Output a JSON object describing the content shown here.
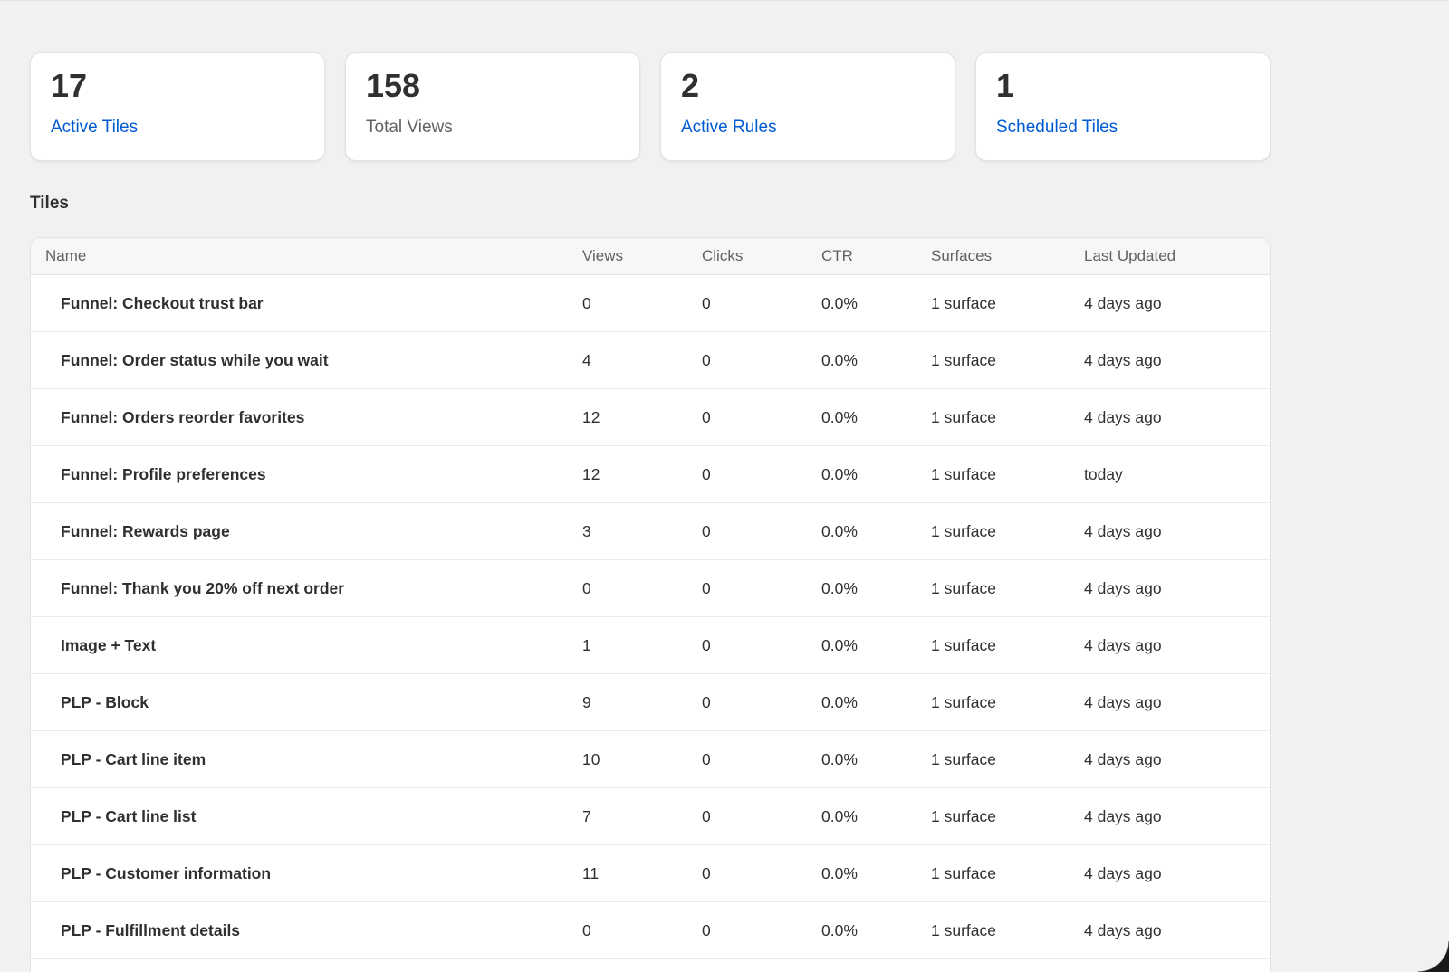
{
  "stats": [
    {
      "value": "17",
      "label": "Active Tiles",
      "link": true
    },
    {
      "value": "158",
      "label": "Total Views",
      "link": false
    },
    {
      "value": "2",
      "label": "Active Rules",
      "link": true
    },
    {
      "value": "1",
      "label": "Scheduled Tiles",
      "link": true
    }
  ],
  "section_title": "Tiles",
  "table": {
    "columns": [
      "Name",
      "Views",
      "Clicks",
      "CTR",
      "Surfaces",
      "Last Updated"
    ],
    "rows": [
      {
        "name": "Funnel: Checkout trust bar",
        "views": "0",
        "clicks": "0",
        "ctr": "0.0%",
        "surfaces": "1 surface",
        "updated": "4 days ago"
      },
      {
        "name": "Funnel: Order status while you wait",
        "views": "4",
        "clicks": "0",
        "ctr": "0.0%",
        "surfaces": "1 surface",
        "updated": "4 days ago"
      },
      {
        "name": "Funnel: Orders reorder favorites",
        "views": "12",
        "clicks": "0",
        "ctr": "0.0%",
        "surfaces": "1 surface",
        "updated": "4 days ago"
      },
      {
        "name": "Funnel: Profile preferences",
        "views": "12",
        "clicks": "0",
        "ctr": "0.0%",
        "surfaces": "1 surface",
        "updated": "today"
      },
      {
        "name": "Funnel: Rewards page",
        "views": "3",
        "clicks": "0",
        "ctr": "0.0%",
        "surfaces": "1 surface",
        "updated": "4 days ago"
      },
      {
        "name": "Funnel: Thank you 20% off next order",
        "views": "0",
        "clicks": "0",
        "ctr": "0.0%",
        "surfaces": "1 surface",
        "updated": "4 days ago"
      },
      {
        "name": "Image + Text",
        "views": "1",
        "clicks": "0",
        "ctr": "0.0%",
        "surfaces": "1 surface",
        "updated": "4 days ago"
      },
      {
        "name": "PLP - Block",
        "views": "9",
        "clicks": "0",
        "ctr": "0.0%",
        "surfaces": "1 surface",
        "updated": "4 days ago"
      },
      {
        "name": "PLP - Cart line item",
        "views": "10",
        "clicks": "0",
        "ctr": "0.0%",
        "surfaces": "1 surface",
        "updated": "4 days ago"
      },
      {
        "name": "PLP - Cart line list",
        "views": "7",
        "clicks": "0",
        "ctr": "0.0%",
        "surfaces": "1 surface",
        "updated": "4 days ago"
      },
      {
        "name": "PLP - Customer information",
        "views": "11",
        "clicks": "0",
        "ctr": "0.0%",
        "surfaces": "1 surface",
        "updated": "4 days ago"
      },
      {
        "name": "PLP - Fulfillment details",
        "views": "0",
        "clicks": "0",
        "ctr": "0.0%",
        "surfaces": "1 surface",
        "updated": "4 days ago"
      }
    ]
  },
  "colors": {
    "background": "#f1f1f1",
    "card": "#ffffff",
    "link": "#005bd3",
    "text": "#303030",
    "muted": "#616161"
  }
}
